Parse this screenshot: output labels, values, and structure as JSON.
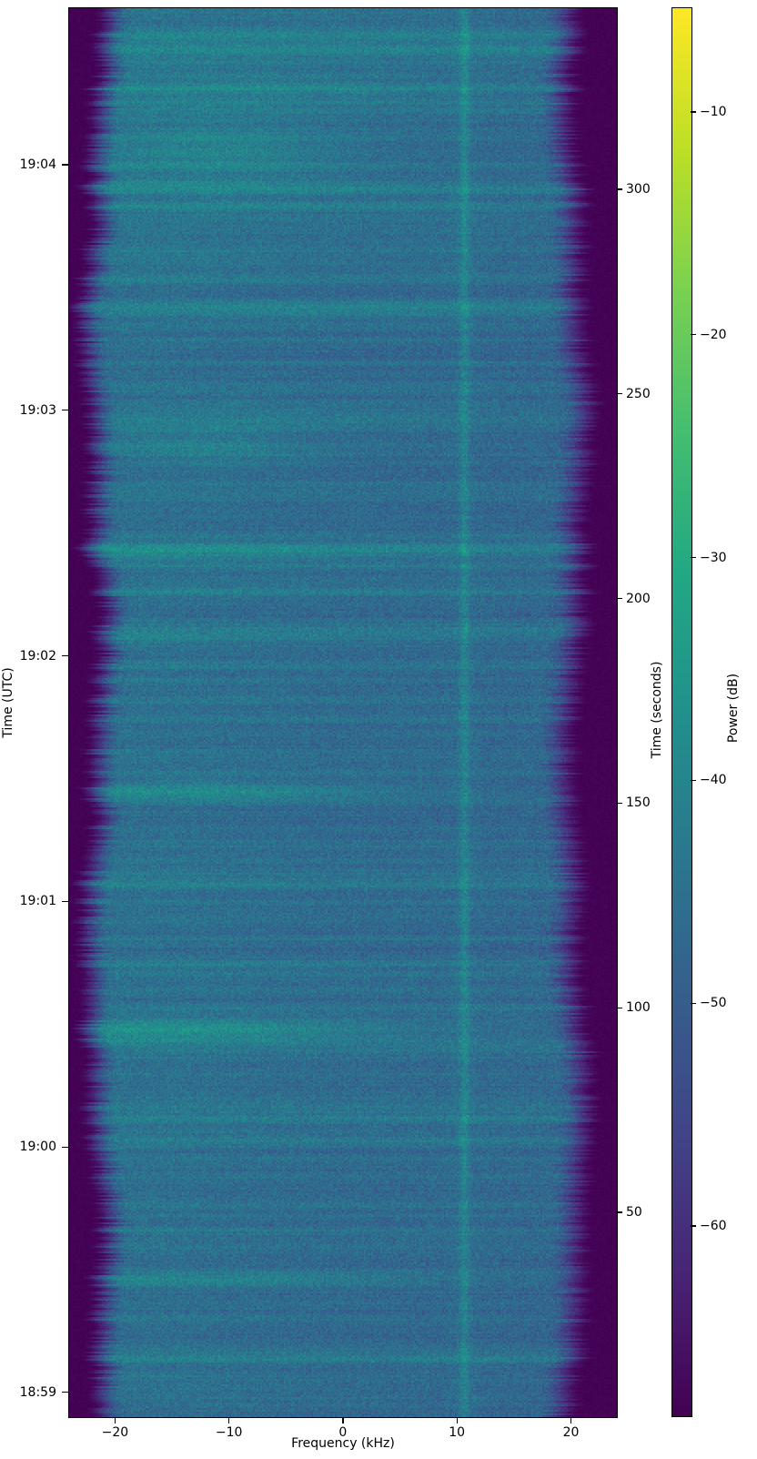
{
  "figure": {
    "background": "#ffffff"
  },
  "chart_data": {
    "type": "heatmap",
    "subtype": "spectrogram-waterfall",
    "title": "",
    "xlabel": "Frequency (kHz)",
    "ylabel_left": "Time (UTC)",
    "ylabel_right": "Time (seconds)",
    "colorbar_label": "Power (dB)",
    "colormap": "viridis",
    "grid": false,
    "x_range_khz": [
      -24.1,
      23.95
    ],
    "x_ticks_khz": [
      -20,
      -10,
      0,
      10,
      20
    ],
    "y_left_ticks": [
      {
        "label": "19:04",
        "seconds": 306
      },
      {
        "label": "19:03",
        "seconds": 246
      },
      {
        "label": "19:02",
        "seconds": 186
      },
      {
        "label": "19:01",
        "seconds": 126
      },
      {
        "label": "19:00",
        "seconds": 66
      },
      {
        "label": "18:59",
        "seconds": 6
      }
    ],
    "y_right_ticks_seconds": [
      300,
      250,
      200,
      150,
      100,
      50
    ],
    "y_range_seconds_bottom_to_top": [
      0.2,
      344.5
    ],
    "power_range_db": [
      -68.5,
      -5.3
    ],
    "colorbar_ticks_db": [
      -10,
      -20,
      -30,
      -40,
      -50,
      -60
    ],
    "background_level_db": -46.3,
    "features": {
      "vertical_carrier": {
        "freq_khz": 10.6,
        "amp_db": 5.4,
        "sigma_khz": 0.29
      },
      "band_edges": {
        "left_rolloff_khz": -22.5,
        "right_rolloff_khz": 21.0,
        "floor_db": -68.3
      },
      "horizontal_bursts": [
        {
          "t_s": 338,
          "amp_db": 3.2,
          "sigma_s": 0.5,
          "profile": "full"
        },
        {
          "t_s": 334.5,
          "amp_db": 4.6,
          "sigma_s": 0.9,
          "profile": "full"
        },
        {
          "t_s": 331,
          "amp_db": 2.2,
          "sigma_s": 0.5,
          "profile": "left"
        },
        {
          "t_s": 328,
          "amp_db": 2.0,
          "sigma_s": 0.6,
          "profile": "center"
        },
        {
          "t_s": 325,
          "amp_db": 4.0,
          "sigma_s": 0.8,
          "profile": "full"
        },
        {
          "t_s": 319.5,
          "amp_db": 2.8,
          "sigma_s": 0.5,
          "profile": "full"
        },
        {
          "t_s": 313,
          "amp_db": 2.4,
          "sigma_s": 0.6,
          "profile": "left"
        },
        {
          "t_s": 309.5,
          "amp_db": 2.6,
          "sigma_s": 1.1,
          "profile": "left"
        },
        {
          "t_s": 306,
          "amp_db": 2.4,
          "sigma_s": 0.8,
          "profile": "left"
        },
        {
          "t_s": 299.5,
          "amp_db": 2.4,
          "sigma_s": 0.5,
          "profile": "full"
        },
        {
          "t_s": 293,
          "amp_db": 2.0,
          "sigma_s": 0.5,
          "profile": "center"
        },
        {
          "t_s": 285,
          "amp_db": 1.7,
          "sigma_s": 0.4,
          "profile": "full"
        },
        {
          "t_s": 278,
          "amp_db": 1.6,
          "sigma_s": 0.4,
          "profile": "left"
        },
        {
          "t_s": 271.5,
          "amp_db": 5.0,
          "sigma_s": 1.0,
          "profile": "full"
        },
        {
          "t_s": 269.5,
          "amp_db": 2.6,
          "sigma_s": 0.5,
          "profile": "center"
        },
        {
          "t_s": 264,
          "amp_db": 1.6,
          "sigma_s": 0.4,
          "profile": "full"
        },
        {
          "t_s": 258,
          "amp_db": 1.5,
          "sigma_s": 0.4,
          "profile": "center"
        },
        {
          "t_s": 252.8,
          "amp_db": 2.0,
          "sigma_s": 0.5,
          "profile": "full"
        },
        {
          "t_s": 248,
          "amp_db": 1.7,
          "sigma_s": 0.4,
          "profile": "center"
        },
        {
          "t_s": 241.7,
          "amp_db": 2.8,
          "sigma_s": 0.6,
          "profile": "left"
        },
        {
          "t_s": 237.3,
          "amp_db": 2.8,
          "sigma_s": 1.0,
          "profile": "left"
        },
        {
          "t_s": 233,
          "amp_db": 1.9,
          "sigma_s": 0.5,
          "profile": "full"
        },
        {
          "t_s": 228.4,
          "amp_db": 2.0,
          "sigma_s": 0.4,
          "profile": "full"
        },
        {
          "t_s": 221.7,
          "amp_db": 1.9,
          "sigma_s": 0.5,
          "profile": "left"
        },
        {
          "t_s": 215.5,
          "amp_db": 2.2,
          "sigma_s": 0.5,
          "profile": "full"
        },
        {
          "t_s": 212.3,
          "amp_db": 5.2,
          "sigma_s": 1.1,
          "profile": "full"
        },
        {
          "t_s": 210,
          "amp_db": 2.4,
          "sigma_s": 0.5,
          "profile": "left"
        },
        {
          "t_s": 205,
          "amp_db": 1.7,
          "sigma_s": 0.5,
          "profile": "center"
        },
        {
          "t_s": 201.7,
          "amp_db": 2.3,
          "sigma_s": 0.5,
          "profile": "full"
        },
        {
          "t_s": 195,
          "amp_db": 1.5,
          "sigma_s": 0.4,
          "profile": "full"
        },
        {
          "t_s": 190.6,
          "amp_db": 2.8,
          "sigma_s": 0.6,
          "profile": "left"
        },
        {
          "t_s": 184,
          "amp_db": 2.0,
          "sigma_s": 0.5,
          "profile": "full"
        },
        {
          "t_s": 176,
          "amp_db": 1.7,
          "sigma_s": 0.4,
          "profile": "center"
        },
        {
          "t_s": 170.6,
          "amp_db": 2.3,
          "sigma_s": 0.5,
          "profile": "full"
        },
        {
          "t_s": 163,
          "amp_db": 1.7,
          "sigma_s": 0.5,
          "profile": "left"
        },
        {
          "t_s": 157.7,
          "amp_db": 2.4,
          "sigma_s": 0.5,
          "profile": "full"
        },
        {
          "t_s": 153.2,
          "amp_db": 5.6,
          "sigma_s": 1.3,
          "profile": "left"
        },
        {
          "t_s": 150.6,
          "amp_db": 2.6,
          "sigma_s": 0.5,
          "profile": "full"
        },
        {
          "t_s": 144,
          "amp_db": 1.7,
          "sigma_s": 0.4,
          "profile": "full"
        },
        {
          "t_s": 139.4,
          "amp_db": 2.0,
          "sigma_s": 0.5,
          "profile": "center"
        },
        {
          "t_s": 133,
          "amp_db": 1.5,
          "sigma_s": 0.4,
          "profile": "full"
        },
        {
          "t_s": 126.1,
          "amp_db": 2.6,
          "sigma_s": 0.6,
          "profile": "full"
        },
        {
          "t_s": 121,
          "amp_db": 1.7,
          "sigma_s": 0.4,
          "profile": "left"
        },
        {
          "t_s": 117.2,
          "amp_db": 2.0,
          "sigma_s": 0.5,
          "profile": "full"
        },
        {
          "t_s": 111,
          "amp_db": 1.5,
          "sigma_s": 0.4,
          "profile": "full"
        },
        {
          "t_s": 105,
          "amp_db": 1.6,
          "sigma_s": 0.4,
          "profile": "center"
        },
        {
          "t_s": 100.5,
          "amp_db": 2.8,
          "sigma_s": 0.5,
          "profile": "full"
        },
        {
          "t_s": 97,
          "amp_db": 2.2,
          "sigma_s": 0.5,
          "profile": "left"
        },
        {
          "t_s": 94.9,
          "amp_db": 6.0,
          "sigma_s": 1.3,
          "profile": "left"
        },
        {
          "t_s": 92.3,
          "amp_db": 3.4,
          "sigma_s": 0.6,
          "profile": "left"
        },
        {
          "t_s": 90.3,
          "amp_db": 2.3,
          "sigma_s": 0.5,
          "profile": "full"
        },
        {
          "t_s": 84,
          "amp_db": 1.7,
          "sigma_s": 0.4,
          "profile": "full"
        },
        {
          "t_s": 78,
          "amp_db": 1.5,
          "sigma_s": 0.4,
          "profile": "center"
        },
        {
          "t_s": 72.7,
          "amp_db": 2.6,
          "sigma_s": 0.6,
          "profile": "full"
        },
        {
          "t_s": 66,
          "amp_db": 1.7,
          "sigma_s": 0.4,
          "profile": "left"
        },
        {
          "t_s": 59.4,
          "amp_db": 2.0,
          "sigma_s": 0.5,
          "profile": "full"
        },
        {
          "t_s": 52,
          "amp_db": 1.5,
          "sigma_s": 0.4,
          "profile": "full"
        },
        {
          "t_s": 46,
          "amp_db": 1.7,
          "sigma_s": 0.4,
          "profile": "left"
        },
        {
          "t_s": 41.5,
          "amp_db": 1.8,
          "sigma_s": 0.4,
          "profile": "full"
        },
        {
          "t_s": 36,
          "amp_db": 2.4,
          "sigma_s": 0.5,
          "profile": "full"
        },
        {
          "t_s": 33.6,
          "amp_db": 4.4,
          "sigma_s": 0.9,
          "profile": "left"
        },
        {
          "t_s": 28,
          "amp_db": 1.5,
          "sigma_s": 0.4,
          "profile": "center"
        },
        {
          "t_s": 23.8,
          "amp_db": 1.9,
          "sigma_s": 0.5,
          "profile": "full"
        },
        {
          "t_s": 17,
          "amp_db": 1.5,
          "sigma_s": 0.4,
          "profile": "full"
        },
        {
          "t_s": 10,
          "amp_db": 1.7,
          "sigma_s": 0.5,
          "profile": "left"
        },
        {
          "t_s": 5,
          "amp_db": 1.8,
          "sigma_s": 0.5,
          "profile": "full"
        }
      ],
      "diffuse_blobs": [
        {
          "t_s": 343,
          "f_khz": -2,
          "amp_db": 2.2,
          "sigma_s": 5.0,
          "sigma_khz": 14
        },
        {
          "t_s": 325,
          "f_khz": -6,
          "amp_db": 2.0,
          "sigma_s": 2.5,
          "sigma_khz": 9
        },
        {
          "t_s": 309.5,
          "f_khz": -10,
          "amp_db": 4.0,
          "sigma_s": 7.0,
          "sigma_khz": 7
        },
        {
          "t_s": 271.5,
          "f_khz": 2,
          "amp_db": 1.5,
          "sigma_s": 1.5,
          "sigma_khz": 10
        },
        {
          "t_s": 237,
          "f_khz": -11,
          "amp_db": 3.0,
          "sigma_s": 4.5,
          "sigma_khz": 6
        },
        {
          "t_s": 212.3,
          "f_khz": -8,
          "amp_db": 1.8,
          "sigma_s": 1.5,
          "sigma_khz": 9
        },
        {
          "t_s": 153.2,
          "f_khz": -10,
          "amp_db": 3.0,
          "sigma_s": 2.0,
          "sigma_khz": 8
        },
        {
          "t_s": 94.9,
          "f_khz": -10,
          "amp_db": 3.5,
          "sigma_s": 1.8,
          "sigma_khz": 8
        },
        {
          "t_s": 33.6,
          "f_khz": -8,
          "amp_db": 2.0,
          "sigma_s": 1.5,
          "sigma_khz": 9
        }
      ]
    },
    "viridis_stops_rgb": [
      [
        68,
        1,
        84
      ],
      [
        72,
        36,
        117
      ],
      [
        65,
        68,
        135
      ],
      [
        53,
        95,
        141
      ],
      [
        42,
        120,
        142
      ],
      [
        33,
        145,
        140
      ],
      [
        34,
        168,
        132
      ],
      [
        68,
        190,
        112
      ],
      [
        122,
        209,
        81
      ],
      [
        189,
        223,
        38
      ],
      [
        253,
        231,
        37
      ]
    ],
    "accent_colors": {
      "background_blue": "#36608d",
      "burst_teal": "#25a186",
      "edge_purple": "#440d54",
      "text": "#000000"
    }
  }
}
